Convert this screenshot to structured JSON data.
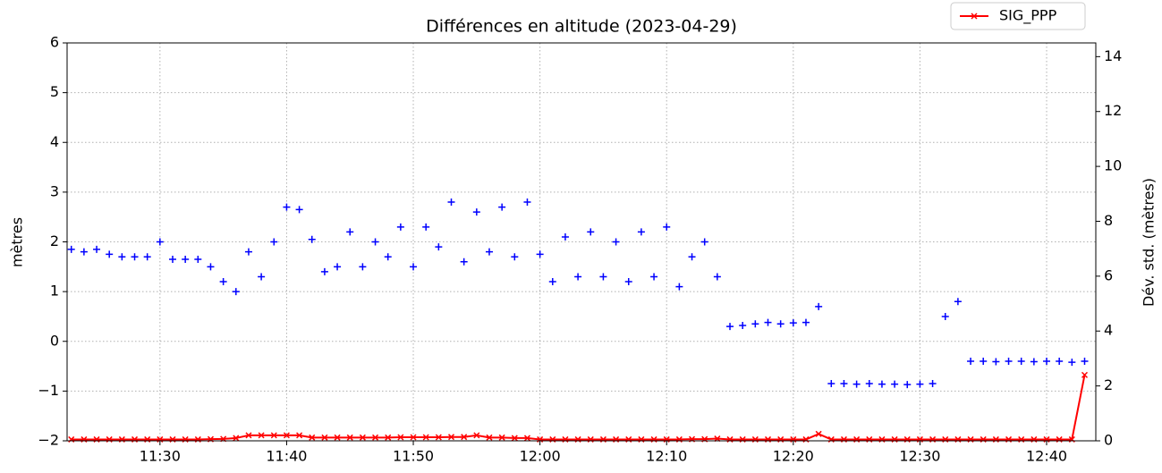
{
  "chart_data": {
    "type": "scatter",
    "title": "Différences en altitude (2023-04-29)",
    "ylabel": "mètres",
    "y2label": "Dév. std. (mètres)",
    "x": [
      "11:23",
      "11:24",
      "11:25",
      "11:26",
      "11:27",
      "11:28",
      "11:29",
      "11:30",
      "11:31",
      "11:32",
      "11:33",
      "11:34",
      "11:35",
      "11:36",
      "11:37",
      "11:38",
      "11:39",
      "11:40",
      "11:41",
      "11:42",
      "11:43",
      "11:44",
      "11:45",
      "11:46",
      "11:47",
      "11:48",
      "11:49",
      "11:50",
      "11:51",
      "11:52",
      "11:53",
      "11:54",
      "11:55",
      "11:56",
      "11:57",
      "11:58",
      "11:59",
      "12:00",
      "12:01",
      "12:02",
      "12:03",
      "12:04",
      "12:05",
      "12:06",
      "12:07",
      "12:08",
      "12:09",
      "12:10",
      "12:11",
      "12:12",
      "12:13",
      "12:14",
      "12:15",
      "12:16",
      "12:17",
      "12:18",
      "12:19",
      "12:20",
      "12:21",
      "12:22",
      "12:23",
      "12:24",
      "12:25",
      "12:26",
      "12:27",
      "12:28",
      "12:29",
      "12:30",
      "12:31",
      "12:32",
      "12:33",
      "12:34",
      "12:35",
      "12:36",
      "12:37",
      "12:38",
      "12:39",
      "12:40",
      "12:41",
      "12:42",
      "12:43"
    ],
    "series": [
      {
        "type": "scatter",
        "color": "#0000ff",
        "axis": "y",
        "values": [
          1.85,
          1.8,
          1.85,
          1.75,
          1.7,
          1.7,
          1.7,
          2.0,
          1.65,
          1.65,
          1.65,
          1.5,
          1.2,
          1.0,
          1.8,
          1.3,
          2.0,
          2.7,
          2.65,
          2.05,
          1.4,
          1.5,
          2.2,
          1.5,
          2.0,
          1.7,
          2.3,
          1.5,
          2.3,
          1.9,
          2.8,
          1.6,
          2.6,
          1.8,
          2.7,
          1.7,
          2.8,
          1.75,
          1.2,
          2.1,
          1.3,
          2.2,
          1.3,
          2.0,
          1.2,
          2.2,
          1.3,
          2.3,
          1.1,
          1.7,
          2.0,
          1.3,
          0.3,
          0.32,
          0.35,
          0.38,
          0.35,
          0.37,
          0.38,
          0.7,
          -0.85,
          -0.85,
          -0.86,
          -0.85,
          -0.86,
          -0.86,
          -0.87,
          -0.86,
          -0.85,
          0.5,
          0.8,
          -0.4,
          -0.4,
          -0.41,
          -0.4,
          -0.4,
          -0.41,
          -0.4,
          -0.4,
          -0.42,
          -0.4
        ]
      },
      {
        "type": "line",
        "name": "SIG_PPP",
        "color": "#ff0000",
        "axis": "y2",
        "values": [
          0.05,
          0.05,
          0.05,
          0.05,
          0.05,
          0.05,
          0.05,
          0.05,
          0.05,
          0.05,
          0.05,
          0.06,
          0.07,
          0.1,
          0.2,
          0.2,
          0.2,
          0.2,
          0.2,
          0.12,
          0.12,
          0.12,
          0.12,
          0.12,
          0.12,
          0.12,
          0.13,
          0.13,
          0.13,
          0.13,
          0.14,
          0.14,
          0.2,
          0.12,
          0.12,
          0.1,
          0.1,
          0.05,
          0.05,
          0.05,
          0.05,
          0.05,
          0.05,
          0.05,
          0.05,
          0.05,
          0.05,
          0.05,
          0.05,
          0.06,
          0.06,
          0.08,
          0.05,
          0.05,
          0.05,
          0.05,
          0.05,
          0.05,
          0.05,
          0.25,
          0.05,
          0.05,
          0.05,
          0.05,
          0.05,
          0.05,
          0.05,
          0.05,
          0.05,
          0.05,
          0.05,
          0.05,
          0.05,
          0.05,
          0.05,
          0.05,
          0.05,
          0.05,
          0.05,
          0.05,
          2.4
        ]
      }
    ],
    "xlim": [
      "11:22:40",
      "12:43:53"
    ],
    "xticks": [
      "11:30",
      "11:40",
      "11:50",
      "12:00",
      "12:10",
      "12:20",
      "12:30",
      "12:40"
    ],
    "ylim": [
      -2,
      6
    ],
    "yticks": [
      {
        "value": -2,
        "label": "−2"
      },
      {
        "value": -1,
        "label": "−1"
      },
      0,
      1,
      2,
      3,
      4,
      5,
      6
    ],
    "y2lim": [
      0,
      14.5
    ],
    "y2ticks": [
      0,
      2,
      4,
      6,
      8,
      10,
      12,
      14
    ],
    "grid": true,
    "legend": "upper right"
  }
}
